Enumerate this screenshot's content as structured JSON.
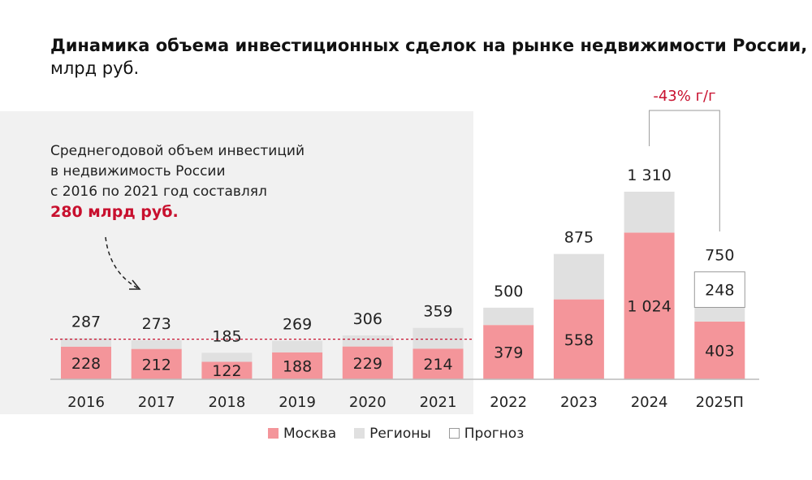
{
  "chart_data": {
    "type": "bar",
    "stacked": true,
    "title": "Динамика объема инвестиционных сделок на рынке недвижимости России,",
    "subtitle": "млрд руб.",
    "categories": [
      "2016",
      "2017",
      "2018",
      "2019",
      "2020",
      "2021",
      "2022",
      "2023",
      "2024",
      "2025П"
    ],
    "totals": [
      287,
      273,
      185,
      269,
      306,
      359,
      500,
      875,
      1310,
      750
    ],
    "total_labels": [
      "287",
      "273",
      "185",
      "269",
      "306",
      "359",
      "500",
      "875",
      "1 310",
      "750"
    ],
    "series": [
      {
        "name": "Москва",
        "color": "#f4959a",
        "values": [
          228,
          212,
          122,
          188,
          229,
          214,
          379,
          558,
          1024,
          403
        ],
        "labels": [
          "228",
          "212",
          "122",
          "188",
          "229",
          "214",
          "379",
          "558",
          "1 024",
          "403"
        ]
      },
      {
        "name": "Регионы",
        "color": "#e0e0e0",
        "values": [
          59,
          61,
          63,
          81,
          77,
          145,
          121,
          317,
          286,
          99
        ]
      },
      {
        "name": "Прогноз",
        "color": "#ffffff",
        "values": [
          0,
          0,
          0,
          0,
          0,
          0,
          0,
          0,
          0,
          248
        ],
        "labels": [
          "",
          "",
          "",
          "",
          "",
          "",
          "",
          "",
          "",
          "248"
        ]
      }
    ],
    "average_line": {
      "value": 280,
      "color": "#c8102e"
    },
    "annotation": {
      "lines": [
        "Среднегодовой объем инвестиций",
        "в недвижимость России",
        "с 2016 по 2021 год составлял"
      ],
      "highlight": "280 млрд руб."
    },
    "change_label": "-43% г/г",
    "accent_color": "#c8102e",
    "legend_position": "bottom",
    "grid": false
  }
}
